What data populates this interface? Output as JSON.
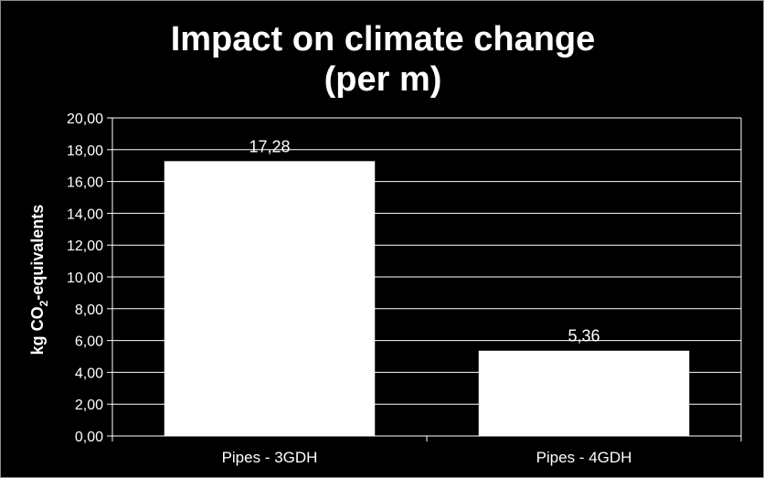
{
  "chart_data": {
    "type": "bar",
    "title_line1": "Impact on climate change",
    "title_line2": "(per m)",
    "ylabel_prefix": "kg CO",
    "ylabel_subscript": "2",
    "ylabel_suffix": "-equivalents",
    "xlabel": "",
    "categories": [
      "Pipes - 3GDH",
      "Pipes - 4GDH"
    ],
    "values": [
      17.28,
      5.36
    ],
    "data_labels": [
      "17,28",
      "5,36"
    ],
    "ylim": [
      0,
      20
    ],
    "yticks": [
      0,
      2,
      4,
      6,
      8,
      10,
      12,
      14,
      16,
      18,
      20
    ],
    "ytick_labels": [
      "0,00",
      "2,00",
      "4,00",
      "6,00",
      "8,00",
      "10,00",
      "12,00",
      "14,00",
      "16,00",
      "18,00",
      "20,00"
    ],
    "grid": true,
    "legend": false,
    "colors": {
      "background": "#000000",
      "bar": "#ffffff",
      "grid": "#ffffff",
      "text": "#ffffff",
      "frame": "#8c8c8c"
    }
  }
}
